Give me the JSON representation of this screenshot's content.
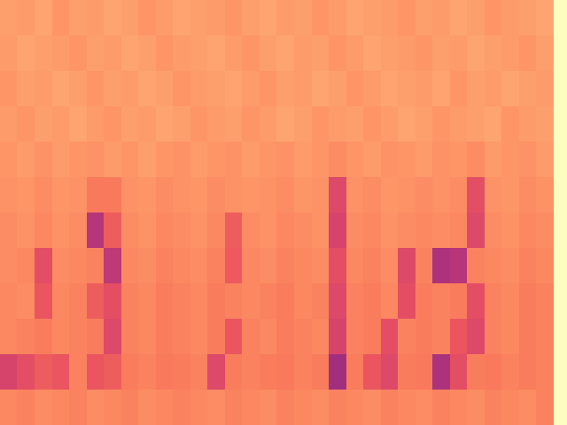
{
  "chart_data": {
    "type": "heatmap",
    "color": "magma",
    "tick_labels": false,
    "grid": false,
    "color_range": [
      0,
      1
    ],
    "cells": [
      [
        0.8,
        0.79,
        0.81,
        0.78,
        0.8,
        0.79,
        0.81,
        0.8,
        0.78,
        0.79,
        0.81,
        0.8,
        0.79,
        0.78,
        0.8,
        0.81,
        0.79,
        0.8,
        0.78,
        0.79,
        0.81,
        0.8,
        0.79,
        0.78,
        0.8,
        0.79,
        0.81,
        0.8,
        0.78,
        0.79,
        0.8,
        0.81
      ],
      [
        0.79,
        0.81,
        0.8,
        0.79,
        0.78,
        0.8,
        0.79,
        0.81,
        0.8,
        0.78,
        0.79,
        0.8,
        0.81,
        0.79,
        0.78,
        0.8,
        0.81,
        0.79,
        0.8,
        0.78,
        0.79,
        0.81,
        0.8,
        0.79,
        0.78,
        0.8,
        0.79,
        0.81,
        0.8,
        0.79,
        0.78,
        0.8
      ],
      [
        0.78,
        0.8,
        0.79,
        0.81,
        0.8,
        0.78,
        0.8,
        0.79,
        0.81,
        0.8,
        0.78,
        0.79,
        0.8,
        0.81,
        0.79,
        0.78,
        0.8,
        0.79,
        0.81,
        0.8,
        0.78,
        0.79,
        0.81,
        0.8,
        0.79,
        0.81,
        0.78,
        0.8,
        0.79,
        0.81,
        0.8,
        0.79
      ],
      [
        0.79,
        0.78,
        0.8,
        0.79,
        0.81,
        0.79,
        0.78,
        0.8,
        0.79,
        0.81,
        0.8,
        0.78,
        0.79,
        0.8,
        0.78,
        0.79,
        0.81,
        0.8,
        0.78,
        0.79,
        0.8,
        0.78,
        0.79,
        0.81,
        0.8,
        0.78,
        0.79,
        0.8,
        0.81,
        0.78,
        0.79,
        0.8
      ],
      [
        0.78,
        0.79,
        0.77,
        0.79,
        0.78,
        0.77,
        0.79,
        0.78,
        0.8,
        0.78,
        0.77,
        0.79,
        0.78,
        0.77,
        0.79,
        0.78,
        0.77,
        0.79,
        0.78,
        0.76,
        0.78,
        0.79,
        0.77,
        0.78,
        0.79,
        0.77,
        0.78,
        0.76,
        0.79,
        0.78,
        0.77,
        0.79
      ],
      [
        0.77,
        0.78,
        0.76,
        0.78,
        0.77,
        0.72,
        0.72,
        0.77,
        0.78,
        0.76,
        0.77,
        0.78,
        0.76,
        0.77,
        0.78,
        0.77,
        0.76,
        0.78,
        0.77,
        0.6,
        0.77,
        0.76,
        0.78,
        0.77,
        0.76,
        0.77,
        0.76,
        0.62,
        0.77,
        0.78,
        0.76,
        0.77
      ],
      [
        0.76,
        0.77,
        0.75,
        0.77,
        0.76,
        0.5,
        0.66,
        0.76,
        0.77,
        0.75,
        0.76,
        0.77,
        0.75,
        0.66,
        0.76,
        0.77,
        0.75,
        0.76,
        0.77,
        0.58,
        0.76,
        0.75,
        0.77,
        0.76,
        0.75,
        0.76,
        0.75,
        0.6,
        0.76,
        0.77,
        0.75,
        0.76
      ],
      [
        0.76,
        0.75,
        0.62,
        0.76,
        0.75,
        0.74,
        0.52,
        0.75,
        0.76,
        0.74,
        0.75,
        0.76,
        0.74,
        0.65,
        0.75,
        0.76,
        0.74,
        0.75,
        0.76,
        0.62,
        0.75,
        0.74,
        0.76,
        0.6,
        0.74,
        0.48,
        0.5,
        0.74,
        0.75,
        0.76,
        0.74,
        0.75
      ],
      [
        0.75,
        0.76,
        0.64,
        0.75,
        0.74,
        0.66,
        0.62,
        0.74,
        0.75,
        0.73,
        0.74,
        0.75,
        0.73,
        0.74,
        0.75,
        0.74,
        0.73,
        0.75,
        0.74,
        0.6,
        0.74,
        0.73,
        0.75,
        0.62,
        0.73,
        0.74,
        0.73,
        0.62,
        0.74,
        0.75,
        0.73,
        0.74
      ],
      [
        0.75,
        0.74,
        0.73,
        0.75,
        0.74,
        0.73,
        0.6,
        0.74,
        0.75,
        0.73,
        0.74,
        0.75,
        0.73,
        0.64,
        0.74,
        0.75,
        0.73,
        0.74,
        0.75,
        0.58,
        0.74,
        0.73,
        0.62,
        0.74,
        0.73,
        0.74,
        0.64,
        0.6,
        0.74,
        0.75,
        0.73,
        0.74
      ],
      [
        0.58,
        0.62,
        0.66,
        0.64,
        0.74,
        0.64,
        0.66,
        0.73,
        0.74,
        0.72,
        0.73,
        0.74,
        0.6,
        0.73,
        0.74,
        0.73,
        0.72,
        0.74,
        0.73,
        0.45,
        0.73,
        0.64,
        0.6,
        0.73,
        0.72,
        0.48,
        0.62,
        0.73,
        0.72,
        0.74,
        0.73,
        0.74
      ],
      [
        0.75,
        0.74,
        0.76,
        0.75,
        0.74,
        0.76,
        0.75,
        0.74,
        0.76,
        0.75,
        0.74,
        0.75,
        0.76,
        0.74,
        0.75,
        0.76,
        0.74,
        0.75,
        0.76,
        0.74,
        0.75,
        0.76,
        0.74,
        0.75,
        0.76,
        0.74,
        0.75,
        0.76,
        0.74,
        0.75,
        0.76,
        0.74
      ]
    ]
  }
}
